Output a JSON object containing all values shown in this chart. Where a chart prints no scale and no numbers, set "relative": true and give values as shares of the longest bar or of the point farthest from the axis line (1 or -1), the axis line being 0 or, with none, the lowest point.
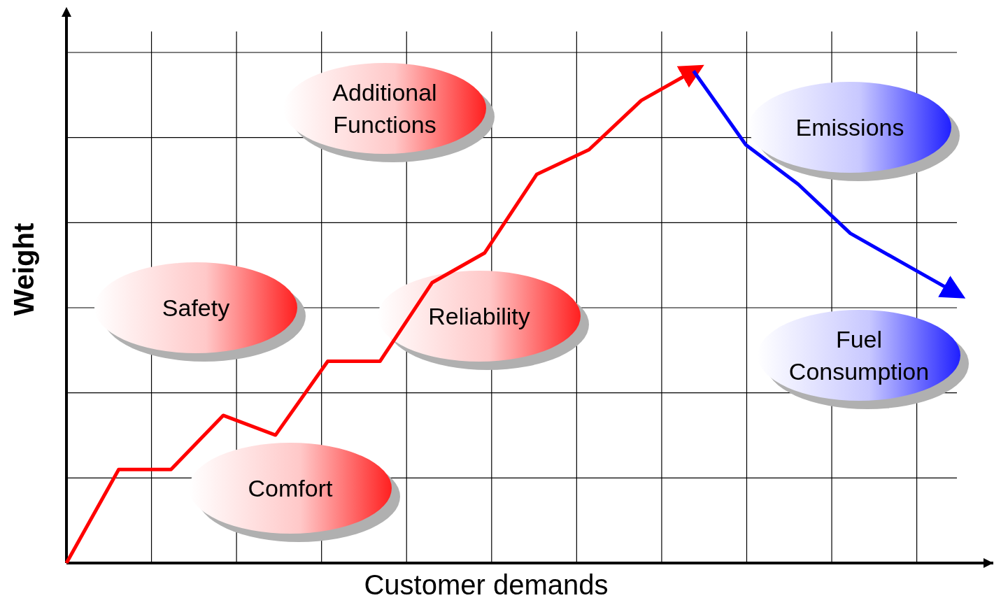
{
  "chart_data": {
    "type": "line",
    "relative": true,
    "xlabel": "Customer demands",
    "ylabel": "Weight",
    "categories": [
      null,
      null,
      null,
      null,
      null,
      null,
      null,
      null,
      null,
      null,
      null,
      null,
      null,
      null,
      null,
      null,
      null,
      null
    ],
    "grid": true,
    "line_style": "solid",
    "series": [
      {
        "color": "#ff0000",
        "values": [
          0,
          0.19,
          0.19,
          0.3,
          0.26,
          0.41,
          0.41,
          0.57,
          0.63,
          0.79,
          0.84,
          0.94,
          1,
          null,
          null,
          null,
          null,
          null
        ]
      },
      {
        "color": "#0000ff",
        "values": [
          null,
          null,
          null,
          null,
          null,
          null,
          null,
          null,
          null,
          null,
          null,
          null,
          1,
          0.85,
          0.77,
          0.67,
          0.61,
          0.55
        ]
      }
    ],
    "annotations": [
      "Additional\nFunctions",
      "Safety",
      "Reliability",
      "Comfort",
      "Emissions",
      "Fuel\nConsumption"
    ]
  }
}
